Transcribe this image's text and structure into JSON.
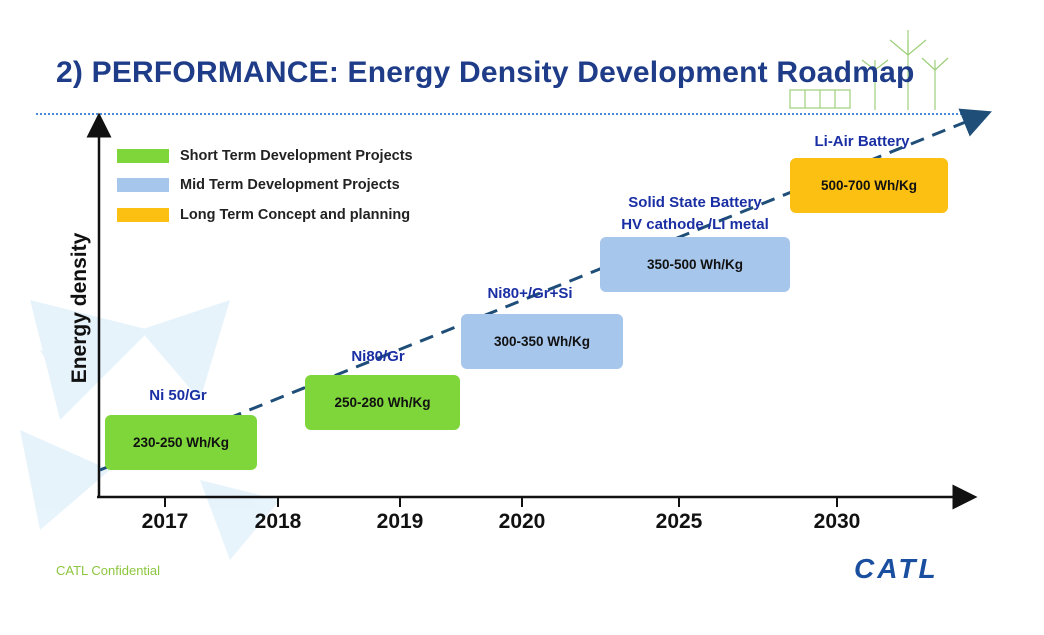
{
  "title": "2) PERFORMANCE: Energy Density Development Roadmap",
  "y_axis_label": "Energy density",
  "legend": [
    {
      "label": "Short Term Development Projects",
      "color": "#7ed63a"
    },
    {
      "label": "Mid Term Development Projects",
      "color": "#a7c6ec"
    },
    {
      "label": "Long Term Concept and planning",
      "color": "#fcc012"
    }
  ],
  "x_axis": {
    "years": [
      "2017",
      "2018",
      "2019",
      "2020",
      "2025",
      "2030"
    ]
  },
  "milestones": [
    {
      "tech": "Ni 50/Gr",
      "density": "230-250 Wh/Kg",
      "category": "short"
    },
    {
      "tech": "Ni80/Gr",
      "density": "250-280 Wh/Kg",
      "category": "short"
    },
    {
      "tech": "Ni80+/Gr+Si",
      "density": "300-350 Wh/Kg",
      "category": "mid"
    },
    {
      "tech_line1": "Solid State Battery",
      "tech_line2": "HV cathode /Li metal",
      "density": "350-500 Wh/Kg",
      "category": "mid"
    },
    {
      "tech": "Li-Air Battery",
      "density": "500-700 Wh/Kg",
      "category": "long"
    }
  ],
  "footer": {
    "confidential": "CATL Confidential",
    "logo": "CATL"
  }
}
